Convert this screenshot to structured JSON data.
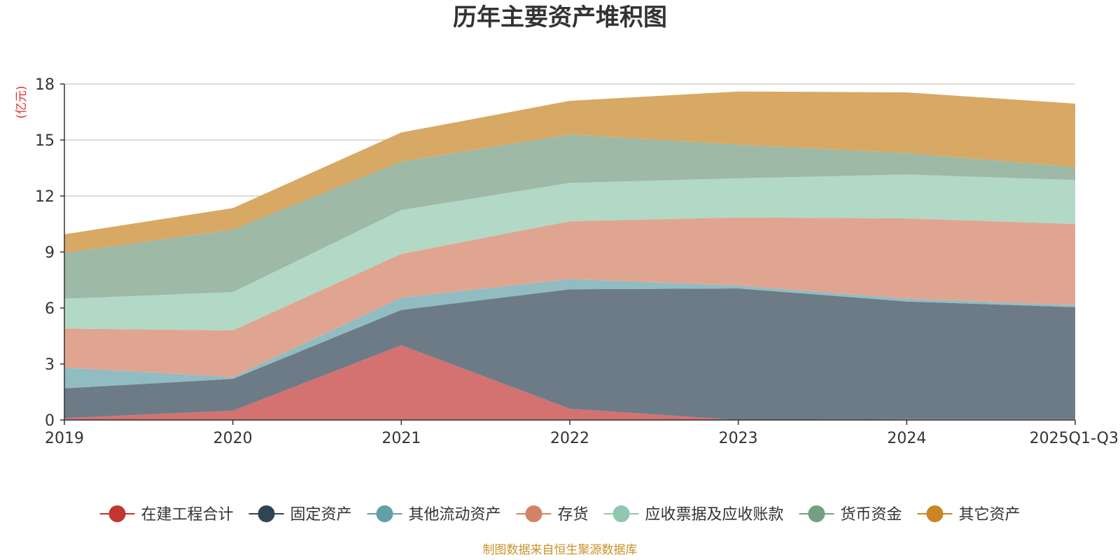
{
  "chart_data": {
    "type": "area",
    "stacked": true,
    "title": "历年主要资产堆积图",
    "ylabel": "(亿元)",
    "xlabel": "",
    "categories": [
      "2019",
      "2020",
      "2021",
      "2022",
      "2023",
      "2024",
      "2025Q1-Q3"
    ],
    "ylim": [
      0,
      18
    ],
    "yticks": [
      0,
      3,
      6,
      9,
      12,
      15,
      18
    ],
    "grid": true,
    "legend_position": "bottom",
    "series": [
      {
        "name": "在建工程合计",
        "color": "#c23531",
        "area_color": "#d47271",
        "values": [
          0.1,
          0.5,
          4.0,
          0.6,
          0.0,
          0.05,
          0.05
        ]
      },
      {
        "name": "固定资产",
        "color": "#2f4554",
        "area_color": "#6d7b87",
        "values": [
          1.6,
          1.7,
          1.9,
          6.4,
          7.05,
          6.3,
          6.0
        ]
      },
      {
        "name": "其他流动资产",
        "color": "#61a0a8",
        "area_color": "#90bcc2",
        "values": [
          1.1,
          0.1,
          0.65,
          0.55,
          0.15,
          0.15,
          0.1
        ]
      },
      {
        "name": "存货",
        "color": "#d48265",
        "area_color": "#e0a590",
        "values": [
          2.1,
          2.5,
          2.35,
          3.1,
          3.65,
          4.3,
          4.35
        ]
      },
      {
        "name": "应收票据及应收账款",
        "color": "#91c7ae",
        "area_color": "#b2d8c6",
        "values": [
          1.6,
          2.05,
          2.35,
          2.05,
          2.1,
          2.35,
          2.35
        ]
      },
      {
        "name": "货币资金",
        "color": "#749f83",
        "area_color": "#9eb9a6",
        "values": [
          2.45,
          3.35,
          2.6,
          2.6,
          1.8,
          1.15,
          0.7
        ]
      },
      {
        "name": "其它资产",
        "color": "#ca8622",
        "area_color": "#d8a964",
        "values": [
          1.0,
          1.15,
          1.55,
          1.8,
          2.85,
          3.25,
          3.4
        ]
      }
    ],
    "source": "制图数据来自恒生聚源数据库"
  }
}
